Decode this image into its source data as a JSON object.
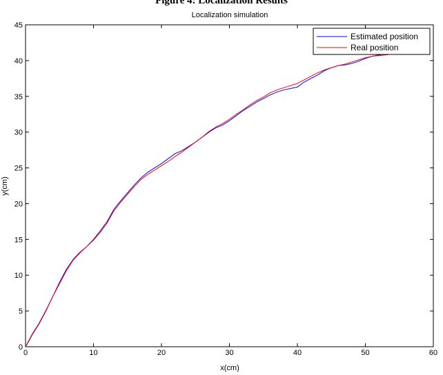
{
  "page": {
    "heading": "Figure 4: Localization Results"
  },
  "chart_data": {
    "type": "line",
    "title": "Localization simulation",
    "xlabel": "x(cm)",
    "ylabel": "y(cm)",
    "xlim": [
      0,
      60
    ],
    "ylim": [
      0,
      45
    ],
    "xticks": [
      0,
      10,
      20,
      30,
      40,
      50,
      60
    ],
    "yticks": [
      0,
      5,
      10,
      15,
      20,
      25,
      30,
      35,
      40,
      45
    ],
    "grid": false,
    "legend_position": "top-right",
    "series": [
      {
        "name": "Estimated position",
        "color": "#0000ff",
        "points": [
          [
            0,
            0
          ],
          [
            0.5,
            0.8
          ],
          [
            1,
            1.7
          ],
          [
            2,
            3.2
          ],
          [
            3,
            5.0
          ],
          [
            4,
            7.0
          ],
          [
            5,
            9.0
          ],
          [
            6,
            10.8
          ],
          [
            7,
            12.2
          ],
          [
            8,
            13.2
          ],
          [
            9,
            14.0
          ],
          [
            10,
            15.0
          ],
          [
            11,
            16.2
          ],
          [
            12,
            17.5
          ],
          [
            13,
            19.2
          ],
          [
            14,
            20.4
          ],
          [
            15,
            21.5
          ],
          [
            16,
            22.6
          ],
          [
            17,
            23.6
          ],
          [
            18,
            24.4
          ],
          [
            19,
            25.0
          ],
          [
            20,
            25.6
          ],
          [
            21,
            26.3
          ],
          [
            22,
            27.0
          ],
          [
            23,
            27.4
          ],
          [
            24,
            28.0
          ],
          [
            25,
            28.6
          ],
          [
            26,
            29.3
          ],
          [
            27,
            30.0
          ],
          [
            28,
            30.6
          ],
          [
            29,
            31.0
          ],
          [
            30,
            31.6
          ],
          [
            31,
            32.3
          ],
          [
            32,
            33.0
          ],
          [
            33,
            33.6
          ],
          [
            34,
            34.2
          ],
          [
            35,
            34.7
          ],
          [
            36,
            35.2
          ],
          [
            37,
            35.6
          ],
          [
            38,
            35.9
          ],
          [
            39,
            36.1
          ],
          [
            40,
            36.3
          ],
          [
            41,
            37.0
          ],
          [
            42,
            37.5
          ],
          [
            43,
            38.0
          ],
          [
            44,
            38.6
          ],
          [
            45,
            39.0
          ],
          [
            46,
            39.3
          ],
          [
            47,
            39.4
          ],
          [
            48,
            39.6
          ],
          [
            49,
            39.9
          ],
          [
            50,
            40.3
          ],
          [
            51,
            40.6
          ],
          [
            52,
            40.8
          ],
          [
            53,
            40.9
          ],
          [
            54,
            41.0
          ]
        ]
      },
      {
        "name": "Real position",
        "color": "#ff0000",
        "points": [
          [
            0,
            0
          ],
          [
            0.5,
            0.9
          ],
          [
            1,
            1.8
          ],
          [
            2,
            3.3
          ],
          [
            3,
            5.1
          ],
          [
            4,
            7.0
          ],
          [
            5,
            8.8
          ],
          [
            6,
            10.6
          ],
          [
            7,
            12.1
          ],
          [
            8,
            13.1
          ],
          [
            9,
            14.0
          ],
          [
            10,
            14.9
          ],
          [
            11,
            16.0
          ],
          [
            12,
            17.3
          ],
          [
            13,
            19.0
          ],
          [
            14,
            20.2
          ],
          [
            15,
            21.3
          ],
          [
            16,
            22.4
          ],
          [
            17,
            23.4
          ],
          [
            18,
            24.1
          ],
          [
            19,
            24.7
          ],
          [
            20,
            25.3
          ],
          [
            21,
            25.9
          ],
          [
            22,
            26.6
          ],
          [
            23,
            27.2
          ],
          [
            24,
            27.9
          ],
          [
            25,
            28.6
          ],
          [
            26,
            29.3
          ],
          [
            27,
            30.1
          ],
          [
            28,
            30.7
          ],
          [
            29,
            31.2
          ],
          [
            30,
            31.8
          ],
          [
            31,
            32.5
          ],
          [
            32,
            33.1
          ],
          [
            33,
            33.8
          ],
          [
            34,
            34.4
          ],
          [
            35,
            34.9
          ],
          [
            36,
            35.5
          ],
          [
            37,
            35.9
          ],
          [
            38,
            36.2
          ],
          [
            39,
            36.5
          ],
          [
            40,
            36.8
          ],
          [
            41,
            37.3
          ],
          [
            42,
            37.8
          ],
          [
            43,
            38.3
          ],
          [
            44,
            38.7
          ],
          [
            45,
            39.0
          ],
          [
            46,
            39.3
          ],
          [
            47,
            39.5
          ],
          [
            48,
            39.8
          ],
          [
            49,
            40.1
          ],
          [
            50,
            40.4
          ],
          [
            51,
            40.6
          ],
          [
            52,
            40.7
          ],
          [
            53,
            40.8
          ],
          [
            54,
            40.9
          ]
        ]
      }
    ]
  }
}
